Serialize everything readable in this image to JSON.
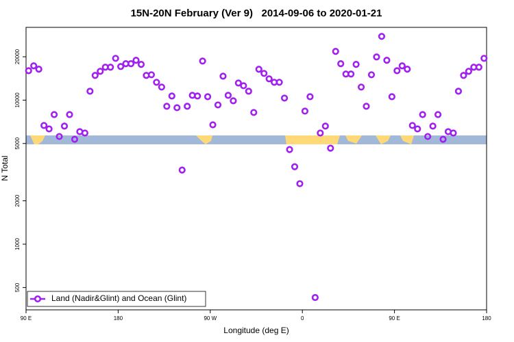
{
  "chart_data": {
    "type": "scatter",
    "title": "15N-20N February (Ver 9)   2014-09-06 to 2020-01-21",
    "xlabel": "Longitude (deg E)",
    "ylabel": "N Total",
    "xlim": [
      90,
      540
    ],
    "xticks": [
      {
        "value": 90,
        "label": "90 E"
      },
      180,
      {
        "value": 270,
        "label": "90 W"
      },
      {
        "value": 360,
        "label": "0"
      },
      {
        "value": 450,
        "label": "90 E"
      },
      {
        "value": 540,
        "label": "180"
      }
    ],
    "ylim": [
      350,
      32000
    ],
    "yticks": [
      500,
      1000,
      2000,
      5000,
      10000,
      20000
    ],
    "log_y": true,
    "legend": "lower left",
    "series": [
      {
        "name": "Land (Nadir&Glint) and Ocean (Glint)",
        "color": "#a020f0",
        "x": [
          92.5,
          97.5,
          102.5,
          107.5,
          112.5,
          117.5,
          122.5,
          127.5,
          132.5,
          137.5,
          142.5,
          147.5,
          152.5,
          157.5,
          162.5,
          167.5,
          172.5,
          177.5,
          182.5,
          187.5,
          192.5,
          197.5,
          202.5,
          207.5,
          212.5,
          217.5,
          222.5,
          227.5,
          232.5,
          237.5,
          242.5,
          247.5,
          252.5,
          257.5,
          262.5,
          267.5,
          272.5,
          277.5,
          282.5,
          287.5,
          292.5,
          297.5,
          302.5,
          307.5,
          312.5,
          317.5,
          322.5,
          327.5,
          332.5,
          337.5,
          342.5,
          347.5,
          352.5,
          357.5,
          362.5,
          367.5,
          372.5,
          377.5,
          382.5,
          387.5,
          392.5,
          397.5,
          402.5,
          407.5,
          412.5,
          417.5,
          422.5,
          427.5,
          432.5,
          437.5,
          442.5,
          447.5,
          452.5,
          457.5,
          462.5,
          467.5,
          472.5,
          477.5,
          482.5,
          487.5,
          492.5,
          497.5,
          502.5,
          507.5,
          512.5,
          517.5,
          522.5,
          527.5,
          532.5,
          537.5
        ],
        "values": [
          16000,
          17300,
          16400,
          6670,
          6310,
          7940,
          5590,
          6600,
          7940,
          5350,
          6040,
          5910,
          11530,
          14840,
          15850,
          16930,
          16930,
          19500,
          17120,
          17900,
          17900,
          18900,
          17700,
          14840,
          15000,
          13300,
          12320,
          9060,
          10680,
          8860,
          3270,
          9060,
          10800,
          10680,
          18680,
          10560,
          6740,
          9260,
          14660,
          10800,
          9890,
          13150,
          12590,
          11530,
          8210,
          16380,
          15330,
          14050,
          13300,
          13300,
          10330,
          4540,
          3450,
          2630,
          8390,
          10560,
          426,
          5910,
          6600,
          4640,
          21800,
          17900,
          15170,
          15170,
          17700,
          12320,
          9060,
          15000,
          19950,
          27700,
          18900,
          10560,
          16000,
          17300,
          16400,
          6670,
          6310,
          7940,
          5590,
          6600,
          7940,
          5350,
          6040,
          5910,
          11530,
          14840,
          15850,
          16930,
          16930,
          19500
        ]
      }
    ]
  }
}
